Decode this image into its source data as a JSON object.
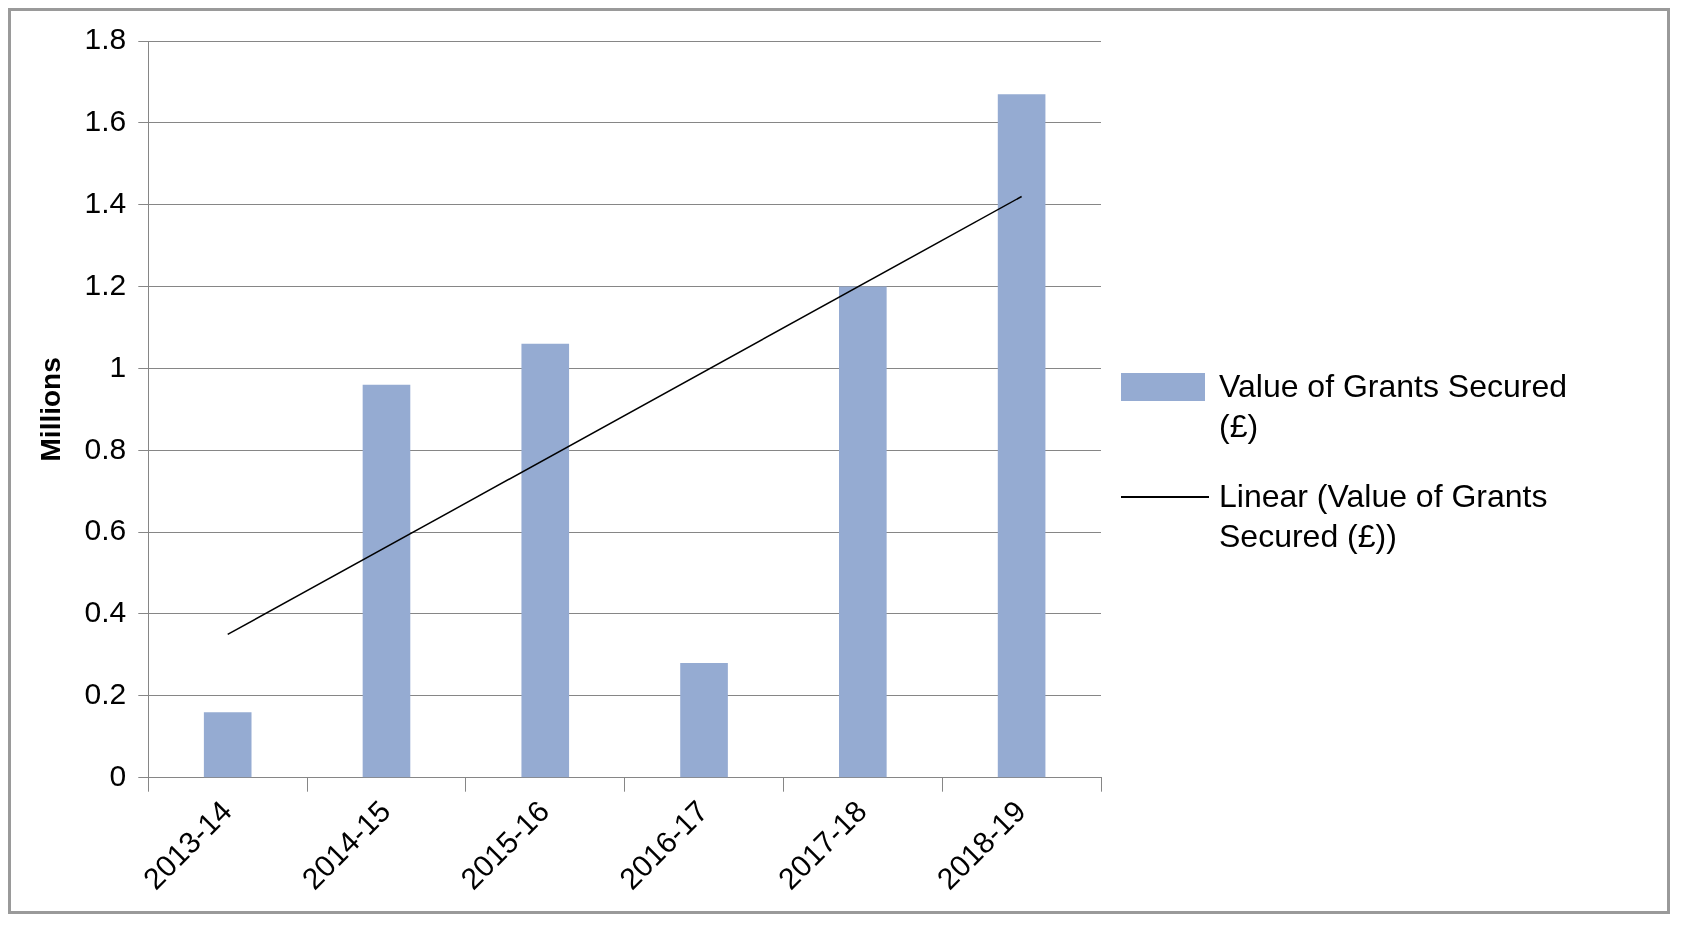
{
  "chart_data": {
    "type": "bar",
    "ylabel": "Millions",
    "categories": [
      "2013-14",
      "2014-15",
      "2015-16",
      "2016-17",
      "2017-18",
      "2018-19"
    ],
    "series": [
      {
        "name": "Value of Grants Secured (£)",
        "color": "#95abd2",
        "values": [
          0.16,
          0.96,
          1.06,
          0.28,
          1.2,
          1.67
        ]
      },
      {
        "name": "Linear (Value of Grants Secured (£))",
        "type": "line",
        "color": "#000000",
        "x": [
          "2013-14",
          "2018-19"
        ],
        "values": [
          0.35,
          1.42
        ]
      }
    ],
    "ylim": [
      0,
      1.8
    ],
    "yticks": [
      0,
      0.2,
      0.4,
      0.6,
      0.8,
      1,
      1.2,
      1.4,
      1.6,
      1.8
    ],
    "grid": "y",
    "legend": "right",
    "marker": "none",
    "line_style": "solid"
  }
}
